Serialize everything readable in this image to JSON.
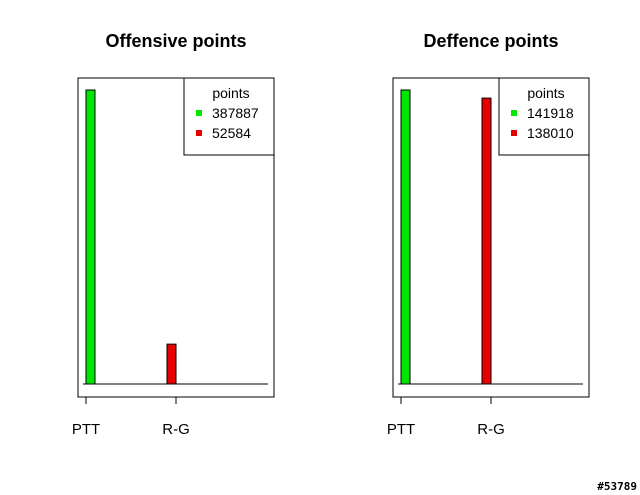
{
  "chart_data": [
    {
      "type": "bar",
      "title": "Offensive points",
      "xlabel": "",
      "ylabel": "",
      "categories": [
        "PTT",
        "R-G"
      ],
      "values": [
        387887,
        52584
      ],
      "colors": [
        "#00e600",
        "#e60000"
      ],
      "ylim": [
        0,
        387887
      ],
      "y_axis_shown": false,
      "grid": false,
      "legend": {
        "title": "points",
        "placement": "top-right",
        "entries": [
          {
            "label": "387887",
            "color": "#00e600"
          },
          {
            "label": "52584",
            "color": "#e60000"
          }
        ]
      }
    },
    {
      "type": "bar",
      "title": "Deffence points",
      "xlabel": "",
      "ylabel": "",
      "categories": [
        "PTT",
        "R-G"
      ],
      "values": [
        141918,
        138010
      ],
      "colors": [
        "#00e600",
        "#e60000"
      ],
      "ylim": [
        0,
        141918
      ],
      "y_axis_shown": false,
      "grid": false,
      "legend": {
        "title": "points",
        "placement": "top-right",
        "entries": [
          {
            "label": "141918",
            "color": "#00e600"
          },
          {
            "label": "138010",
            "color": "#e60000"
          }
        ]
      }
    }
  ],
  "footer_tag": "#53789"
}
